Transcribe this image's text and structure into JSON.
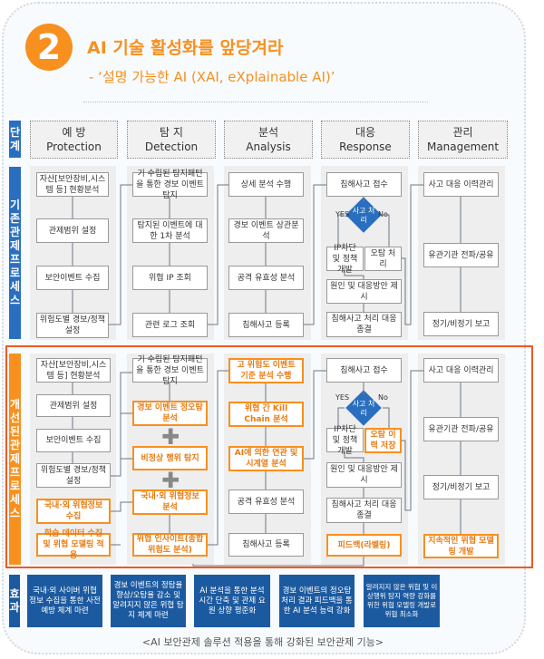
{
  "header": {
    "number": "2",
    "title": "AI 기술 활성화를 앞당겨라",
    "subtitle": "- ‘설명 가능한 AI (XAI, eXplainable AI)’"
  },
  "row_labels": {
    "stage": "단계",
    "existing": "기존관제프로세스",
    "improved": "개선된관제프로세스",
    "effect": "효과"
  },
  "stages": [
    {
      "ko": "예 방",
      "en": "Protection"
    },
    {
      "ko": "탐 지",
      "en": "Detection"
    },
    {
      "ko": "분석",
      "en": "Analysis"
    },
    {
      "ko": "대응",
      "en": "Response"
    },
    {
      "ko": "관리",
      "en": "Management"
    }
  ],
  "existing": {
    "protection": [
      "자산[보안장비,시스템 등] 현황분석",
      "관제범위 설정",
      "보안이벤트 수집",
      "위험도별 경보/정책 설정"
    ],
    "detection": [
      "기 수립된 탐지패턴을 통한 경보 이벤트 탐지",
      "탐지된 이벤트에 대한 1차 분석",
      "위협 IP 조회",
      "관련 로그 조회"
    ],
    "analysis": [
      "상세 분석 수행",
      "경보 이벤트 상관분석",
      "공격 유효성 분석",
      "침해사고 등록"
    ],
    "response": {
      "receive": "침해사고 접수",
      "decision": "사고 처리",
      "yes": "YES",
      "no": "No",
      "block": "IP차단 및 정책 개발",
      "false_positive": "오탐 처리",
      "cause": "원인 및 대응방안 제시",
      "close": "침해사고 처리 대응 종결"
    },
    "management": [
      "사고 대응 이력관리",
      "유관기관 전파/공유",
      "정기/비정기 보고"
    ]
  },
  "improved": {
    "protection": [
      "자산[보안장비,시스템 등] 현황분석",
      "관제범위 설정",
      "보안이벤트 수집",
      "위험도별 경보/정책 설정",
      "국내·외 위협정보 수집",
      "학습 데이터 수집 및 위협 모델링 적용"
    ],
    "detection": [
      "기 수립된 탐지패턴을 통한 경보 이벤트 탐지",
      "경보 이벤트 정오탐 분석",
      "비정상 행위 탐지",
      "국내·외 위협정보 분석",
      "위협 인사이트(종합 위험도 분석)"
    ],
    "analysis": [
      "고 위험도 이벤트 기준 분석 수행",
      "위협 간 Kill Chain 분석",
      "AI에 의한 연관 및 시계열 분석",
      "공격 유효성 분석",
      "침해사고 등록"
    ],
    "response": {
      "receive": "침해사고 접수",
      "decision": "사고 처리",
      "yes": "YES",
      "no": "No",
      "block": "IP차단 및 정책 개발",
      "false_positive": "오탐 이력 저장",
      "cause": "원인 및 대응방안 제시",
      "close": "침해사고 처리 대응 종결",
      "feedback": "피드백(라벨링)"
    },
    "management": [
      "사고 대응 이력관리",
      "유관기관 전파/공유",
      "정기/비정기 보고",
      "지속적인 위협 모델링 개발"
    ]
  },
  "effects": [
    "국내·외 사이버 위협 정보 수집을 통한 사전 예방 체계 마련",
    "경보 이벤트의 정탐율 향상/오탐율 감소 및 알려지지 않은 위협 탐지 체계 마련",
    "AI 분석을 통한 분석 시간 단축 및 관제 요원 상향 평준화",
    "경보 이벤트의 정오탐 처리 결과 피드백을 통한 AI 분석 능력 강화",
    "알려지지 않은 위협 및 이상행위 탐지 역량 강화를 위한 위협 모델링 개발로 위협 최소화"
  ],
  "caption": "<AI 보안관제 솔루션 적용을 통해 강화된 보안관제 기능>",
  "colors": {
    "orange": "#f7901e",
    "blue": "#1c5aa0",
    "existing_label": "#2a6fbf",
    "improved_label": "#f7901e",
    "improved_border": "#f05a22"
  }
}
